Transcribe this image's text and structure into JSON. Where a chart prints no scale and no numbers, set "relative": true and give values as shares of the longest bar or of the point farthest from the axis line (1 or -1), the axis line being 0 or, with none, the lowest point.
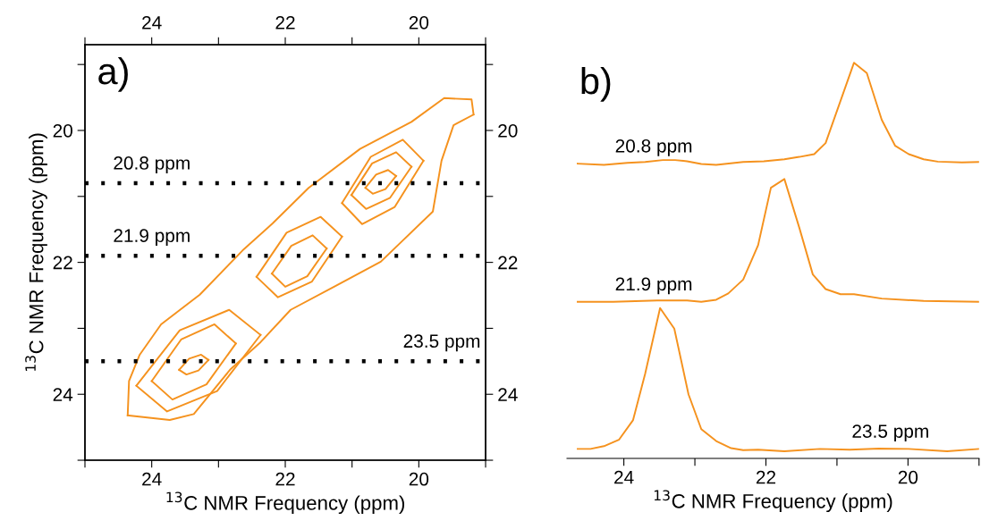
{
  "chart_data": [
    {
      "type": "line",
      "xlabel": "$^{13}$C NMR Frequency (ppm)",
      "ylabel": "$^{13}$C NMR Frequency (ppm)",
      "xlim": [
        25,
        19
      ],
      "ylim": [
        25,
        18.7
      ],
      "xticks": [
        {
          "value": 25,
          "label": null
        },
        24,
        {
          "value": 23,
          "label": null
        },
        22,
        {
          "value": 21,
          "label": null
        },
        20,
        {
          "value": 19,
          "label": null
        }
      ],
      "yticks": [
        {
          "value": 25,
          "label": null
        },
        24,
        {
          "value": 23,
          "label": null
        },
        22,
        {
          "value": 21,
          "label": null
        },
        20,
        {
          "value": 19,
          "label": null
        }
      ],
      "x2lim": [
        25,
        19
      ],
      "x2ticks": [
        {
          "value": 25,
          "label": null
        },
        24,
        {
          "value": 23,
          "label": null
        },
        22,
        {
          "value": 21,
          "label": null
        },
        20,
        {
          "value": 19,
          "label": null
        }
      ],
      "y2lim": [
        25,
        18.7
      ],
      "y2ticks": [
        {
          "value": 25,
          "label": null
        },
        24,
        {
          "value": 23,
          "label": null
        },
        22,
        {
          "value": 21,
          "label": null
        },
        20,
        {
          "value": 19,
          "label": null
        }
      ],
      "grid": false,
      "legend": false,
      "marker": "none",
      "line_style": "solid",
      "series": [
        {
          "color": "#f5921e",
          "x": [
            24.36,
            24.34,
            24.18,
            23.86,
            23.28,
            22.64,
            22.19,
            21.65,
            20.88,
            20.11,
            19.62,
            19.21,
            19.18
          ],
          "values": [
            24.32,
            23.8,
            23.4,
            22.94,
            22.49,
            21.82,
            21.41,
            20.87,
            20.28,
            19.87,
            19.51,
            19.53,
            19.76
          ]
        },
        {
          "color": "#f5921e",
          "x": [
            19.18,
            19.48,
            19.66,
            19.79,
            20.57,
            21.25,
            21.92,
            22.37,
            22.82,
            23.37,
            23.73,
            24.36
          ],
          "values": [
            19.76,
            19.92,
            20.46,
            21.23,
            21.99,
            22.36,
            22.72,
            23.21,
            23.62,
            24.3,
            24.39,
            24.32
          ]
        },
        {
          "color": "#f5921e",
          "x": [
            23.59,
            23.48,
            23.3,
            23.15
          ],
          "values": [
            23.63,
            23.7,
            23.64,
            23.48
          ]
        },
        {
          "color": "#f5921e",
          "x": [
            23.15,
            23.26,
            23.44,
            23.59
          ],
          "values": [
            23.48,
            23.4,
            23.46,
            23.63
          ]
        },
        {
          "color": "#f5921e",
          "x": [
            24.0,
            23.69,
            23.18,
            22.74
          ],
          "values": [
            23.8,
            24.08,
            23.85,
            23.23
          ]
        },
        {
          "color": "#f5921e",
          "x": [
            22.74,
            23.06,
            23.56,
            24.0
          ],
          "values": [
            23.23,
            22.94,
            23.17,
            23.8
          ]
        },
        {
          "color": "#f5921e",
          "x": [
            24.23,
            23.77,
            23.02,
            22.37
          ],
          "values": [
            23.87,
            24.26,
            23.95,
            23.1
          ]
        },
        {
          "color": "#f5921e",
          "x": [
            22.37,
            22.84,
            23.58,
            24.23
          ],
          "values": [
            23.1,
            22.72,
            23.03,
            23.87
          ]
        },
        {
          "color": "#f5921e",
          "x": [
            22.2,
            22.0,
            21.67,
            21.38
          ],
          "values": [
            22.17,
            22.37,
            22.21,
            21.79
          ]
        },
        {
          "color": "#f5921e",
          "x": [
            21.38,
            21.59,
            21.91,
            22.2
          ],
          "values": [
            21.79,
            21.59,
            21.75,
            22.17
          ]
        },
        {
          "color": "#f5921e",
          "x": [
            22.43,
            22.11,
            21.6,
            21.15
          ],
          "values": [
            22.22,
            22.53,
            22.29,
            21.61
          ]
        },
        {
          "color": "#f5921e",
          "x": [
            21.15,
            21.47,
            21.98,
            22.43
          ],
          "values": [
            21.61,
            21.31,
            21.55,
            22.22
          ]
        },
        {
          "color": "#f5921e",
          "x": [
            20.8,
            20.69,
            20.5,
            20.34
          ],
          "values": [
            20.87,
            20.96,
            20.89,
            20.69
          ]
        },
        {
          "color": "#f5921e",
          "x": [
            20.34,
            20.46,
            20.64,
            20.8
          ],
          "values": [
            20.69,
            20.6,
            20.67,
            20.87
          ]
        },
        {
          "color": "#f5921e",
          "x": [
            21.01,
            20.79,
            20.43,
            20.11
          ],
          "values": [
            20.98,
            21.19,
            21.02,
            20.55
          ]
        },
        {
          "color": "#f5921e",
          "x": [
            20.11,
            20.34,
            20.7,
            21.01
          ],
          "values": [
            20.55,
            20.33,
            20.5,
            20.98
          ]
        },
        {
          "color": "#f5921e",
          "x": [
            21.15,
            20.85,
            20.36,
            19.93
          ],
          "values": [
            21.1,
            21.42,
            21.16,
            20.46
          ]
        },
        {
          "color": "#f5921e",
          "x": [
            19.93,
            20.24,
            20.72,
            21.15
          ],
          "values": [
            20.46,
            20.14,
            20.4,
            21.1
          ]
        }
      ],
      "ref_lines": [
        {
          "axis": "y",
          "value": 20.8,
          "label": "20.8 ppm",
          "color": "#000000",
          "line_style": "dotted"
        },
        {
          "axis": "y",
          "value": 21.9,
          "label": "21.9 ppm",
          "color": "#000000",
          "line_style": "dotted"
        },
        {
          "axis": "y",
          "value": 23.5,
          "label": "23.5 ppm",
          "color": "#000000",
          "line_style": "dotted"
        }
      ],
      "annotations": [
        "a)"
      ]
    },
    {
      "type": "line",
      "relative": true,
      "xlabel": "$^{13}$C NMR Frequency (ppm)",
      "xlim": [
        24.8,
        19
      ],
      "xticks": [
        24,
        {
          "value": 23,
          "label": null
        },
        22,
        {
          "value": 21,
          "label": null
        },
        20,
        {
          "value": 19,
          "label": null
        }
      ],
      "tick_labels": "x",
      "grid": false,
      "legend": false,
      "marker": "none",
      "line_style": "solid",
      "series": [
        {
          "name": "20.8 ppm",
          "color": "#f5921e",
          "x": [
            24.65,
            24.28,
            23.95,
            23.7,
            23.45,
            23.28,
            23.11,
            22.91,
            22.7,
            22.32,
            22.03,
            21.74,
            21.53,
            21.32,
            21.16,
            20.76,
            20.58,
            20.37,
            20.18,
            19.99,
            19.78,
            19.58,
            19.24,
            19.0
          ],
          "values": [
            0.745,
            0.742,
            0.747,
            0.749,
            0.754,
            0.754,
            0.751,
            0.744,
            0.742,
            0.749,
            0.751,
            0.756,
            0.762,
            0.769,
            0.797,
            1.0,
            0.974,
            0.856,
            0.79,
            0.769,
            0.756,
            0.75,
            0.748,
            0.749
          ]
        },
        {
          "name": "21.9 ppm",
          "color": "#f5921e",
          "x": [
            24.65,
            24.15,
            23.53,
            23.11,
            22.91,
            22.7,
            22.53,
            22.32,
            22.11,
            21.93,
            21.74,
            21.53,
            21.34,
            21.16,
            20.95,
            20.76,
            20.37,
            19.78,
            19.0
          ],
          "values": [
            0.396,
            0.396,
            0.399,
            0.399,
            0.396,
            0.401,
            0.417,
            0.452,
            0.539,
            0.684,
            0.706,
            0.583,
            0.465,
            0.428,
            0.415,
            0.415,
            0.404,
            0.398,
            0.396
          ]
        },
        {
          "name": "23.5 ppm",
          "color": "#f5921e",
          "x": [
            24.65,
            24.47,
            24.28,
            24.07,
            23.87,
            23.7,
            23.49,
            23.29,
            23.09,
            22.91,
            22.7,
            22.49,
            22.32,
            22.11,
            21.74,
            21.24,
            20.82,
            20.41,
            19.99,
            19.45,
            19.0
          ],
          "values": [
            0.024,
            0.024,
            0.031,
            0.047,
            0.097,
            0.214,
            0.38,
            0.328,
            0.162,
            0.074,
            0.044,
            0.026,
            0.021,
            0.022,
            0.018,
            0.024,
            0.022,
            0.025,
            0.024,
            0.018,
            0.024
          ]
        }
      ],
      "annotations": [
        "b)"
      ]
    }
  ]
}
